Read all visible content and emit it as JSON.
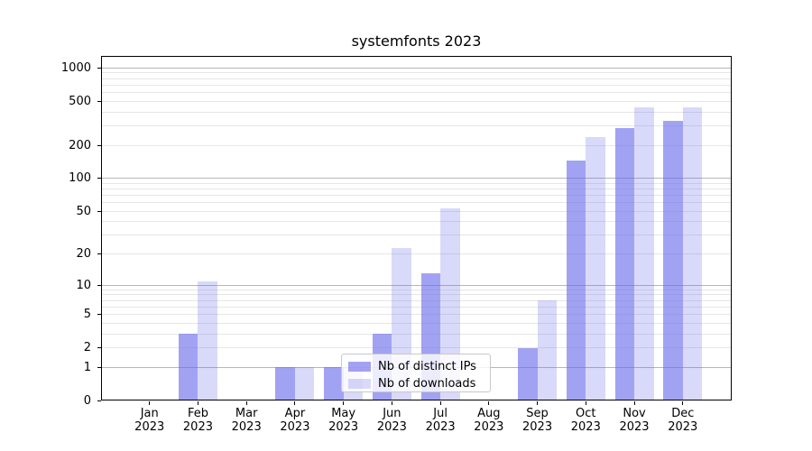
{
  "chart_data": {
    "type": "bar",
    "title": "systemfonts 2023",
    "categories": [
      "Jan 2023",
      "Feb 2023",
      "Mar 2023",
      "Apr 2023",
      "May 2023",
      "Jun 2023",
      "Jul 2023",
      "Aug 2023",
      "Sep 2023",
      "Oct 2023",
      "Nov 2023",
      "Dec 2023"
    ],
    "series": [
      {
        "name": "Nb of distinct IPs",
        "color": "rgba(105,105,235,0.62)",
        "values": [
          0,
          3,
          0,
          1,
          1,
          3,
          13,
          0,
          2,
          145,
          285,
          330
        ]
      },
      {
        "name": "Nb of downloads",
        "color": "rgba(105,105,235,0.25)",
        "values": [
          0,
          11,
          0,
          1,
          1,
          23,
          53,
          0,
          7,
          237,
          438,
          445
        ]
      }
    ],
    "xlabel": "",
    "ylabel": "",
    "y_scale": "log1p",
    "ylim": [
      0,
      1280
    ],
    "y_ticks": [
      0,
      1,
      2,
      5,
      10,
      20,
      50,
      100,
      200,
      500,
      1000
    ],
    "y_minor_gridlines": [
      3,
      4,
      6,
      7,
      8,
      9,
      30,
      40,
      60,
      70,
      80,
      90,
      300,
      400,
      600,
      700,
      800,
      900
    ],
    "grid": "horizontal major+minor",
    "legend_position": "inside bottom, left of center"
  },
  "colors": {
    "bar_base": "#6969eb",
    "grid_major": "#b6b6b6",
    "grid_minor": "#e6e6e6",
    "axis": "#000000",
    "background": "#ffffff"
  }
}
